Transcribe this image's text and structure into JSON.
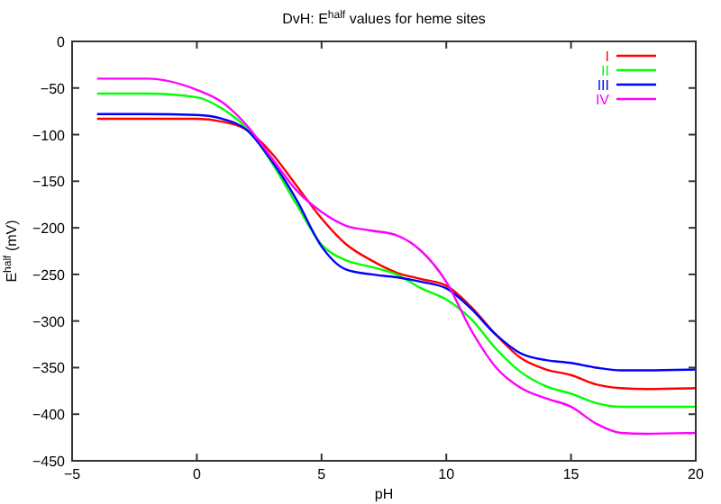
{
  "chart_data": {
    "type": "line",
    "title": "DvH: E$^{half}$ values for heme sites",
    "xlabel": "pH",
    "ylabel": "E$^{half}$ (mV)",
    "x": [
      -4,
      -2,
      0,
      1,
      2,
      3,
      4,
      5,
      6,
      7,
      8,
      9,
      10,
      11,
      12,
      13,
      14,
      15,
      16,
      17,
      18,
      20
    ],
    "series": [
      {
        "name": "I",
        "color": "#ff0000",
        "values": [
          -83,
          -83,
          -83,
          -86,
          -95,
          -120,
          -155,
          -190,
          -218,
          -235,
          -248,
          -255,
          -262,
          -285,
          -315,
          -340,
          -352,
          -358,
          -368,
          -372,
          -373,
          -372
        ]
      },
      {
        "name": "II",
        "color": "#00ff00",
        "values": [
          -56,
          -56,
          -60,
          -72,
          -93,
          -130,
          -175,
          -218,
          -235,
          -242,
          -250,
          -265,
          -277,
          -298,
          -330,
          -355,
          -370,
          -378,
          -388,
          -392,
          -392,
          -392
        ]
      },
      {
        "name": "III",
        "color": "#0000ff",
        "values": [
          -78,
          -78,
          -79,
          -83,
          -95,
          -128,
          -170,
          -220,
          -245,
          -250,
          -253,
          -258,
          -265,
          -287,
          -315,
          -335,
          -342,
          -345,
          -350,
          -353,
          -353,
          -352
        ]
      },
      {
        "name": "IV",
        "color": "#ff00ff",
        "values": [
          -40,
          -40,
          -52,
          -65,
          -90,
          -125,
          -160,
          -183,
          -198,
          -203,
          -208,
          -225,
          -258,
          -310,
          -350,
          -372,
          -383,
          -392,
          -410,
          -420,
          -421,
          -420
        ]
      }
    ],
    "xlim": [
      -5,
      20
    ],
    "xticks": [
      -5,
      0,
      5,
      10,
      15,
      20
    ],
    "ylim": [
      -450,
      0
    ],
    "yticks": [
      -450,
      -400,
      -350,
      -300,
      -250,
      -200,
      -150,
      -100,
      -50,
      0
    ],
    "legend": "top right",
    "grid": false,
    "line_style": "solid"
  }
}
